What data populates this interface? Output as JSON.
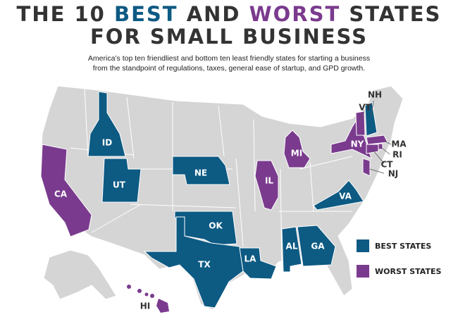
{
  "header": {
    "title_line1": [
      "THE 10",
      "BEST",
      "AND",
      "WORST",
      "STATES"
    ],
    "title_line2": "FOR SMALL BUSINESS",
    "subtitle": [
      "America’s top ten friendliest and bottom ten least friendly states for starting a business",
      "from the standpoint of regulations, taxes, general ease of startup, and GPD growth."
    ]
  },
  "map": {
    "best": {
      "legend": "BEST STATES",
      "color": "#0d5a83",
      "states": [
        "ID",
        "UT",
        "NE",
        "OK",
        "TX",
        "LA",
        "AL",
        "GA",
        "VA",
        "NH"
      ]
    },
    "worst": {
      "legend": "WORST STATES",
      "color": "#7a3b8e",
      "states": [
        "CA",
        "MI",
        "IL",
        "NY",
        "VT",
        "MA",
        "RI",
        "CT",
        "NJ",
        "HI"
      ]
    },
    "base_color": "#d5d5d5"
  }
}
